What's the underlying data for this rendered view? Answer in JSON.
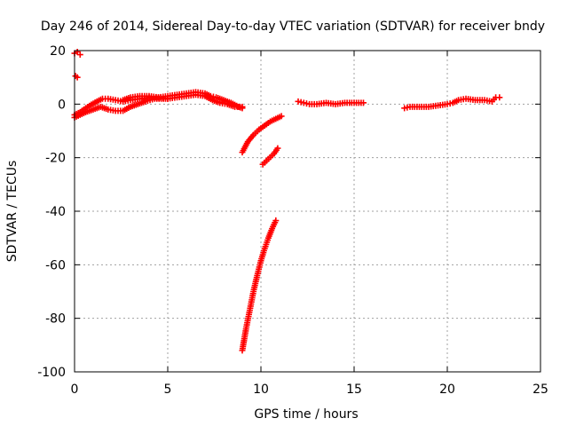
{
  "chart_data": {
    "type": "scatter",
    "title": "Day 246 of 2014, Sidereal Day-to-day VTEC variation (SDTVAR) for receiver bndy",
    "xlabel": "GPS time / hours",
    "ylabel": "SDTVAR / TECUs",
    "xlim": [
      0,
      25
    ],
    "ylim": [
      -100,
      20
    ],
    "xticks": [
      "0",
      "5",
      "10",
      "15",
      "20",
      "25"
    ],
    "yticks": [
      "20",
      "0",
      "-20",
      "-40",
      "-60",
      "-80",
      "-100"
    ],
    "xtick_values": [
      0,
      5,
      10,
      15,
      20,
      25
    ],
    "ytick_values": [
      20,
      0,
      -20,
      -40,
      -60,
      -80,
      -100
    ],
    "grid": true,
    "marker_color": "#ff0000",
    "marker": "plus",
    "series": [
      {
        "segments": [
          [
            [
              0.0,
              19.0
            ],
            [
              0.15,
              19.5
            ],
            [
              0.3,
              18.5
            ]
          ],
          [
            [
              0.05,
              10.5
            ],
            [
              0.15,
              10.0
            ]
          ],
          [
            [
              0.0,
              -4.0
            ],
            [
              0.3,
              -3.0
            ],
            [
              0.6,
              -1.5
            ],
            [
              0.9,
              -0.2
            ],
            [
              1.2,
              1.0
            ],
            [
              1.5,
              2.0
            ],
            [
              1.8,
              2.0
            ],
            [
              2.2,
              1.5
            ],
            [
              2.6,
              1.0
            ],
            [
              3.0,
              1.5
            ],
            [
              3.5,
              2.0
            ],
            [
              4.0,
              2.5
            ],
            [
              4.5,
              2.5
            ],
            [
              5.0,
              3.0
            ],
            [
              5.5,
              3.5
            ],
            [
              6.0,
              4.0
            ],
            [
              6.5,
              4.5
            ],
            [
              7.0,
              4.0
            ],
            [
              7.3,
              3.0
            ],
            [
              7.6,
              2.5
            ],
            [
              8.0,
              1.5
            ],
            [
              8.4,
              0.5
            ],
            [
              8.8,
              -1.0
            ],
            [
              9.0,
              -1.5
            ]
          ],
          [
            [
              0.0,
              -5.0
            ],
            [
              0.3,
              -4.0
            ],
            [
              0.6,
              -3.0
            ],
            [
              1.0,
              -2.0
            ],
            [
              1.4,
              -1.0
            ],
            [
              1.8,
              -2.0
            ],
            [
              2.2,
              -2.5
            ],
            [
              2.6,
              -2.5
            ],
            [
              3.0,
              -1.0
            ],
            [
              3.4,
              0.0
            ],
            [
              3.8,
              1.0
            ],
            [
              4.3,
              2.0
            ],
            [
              5.0,
              2.0
            ],
            [
              5.5,
              2.5
            ],
            [
              6.0,
              3.0
            ],
            [
              6.5,
              3.5
            ],
            [
              7.0,
              3.0
            ],
            [
              7.4,
              1.5
            ],
            [
              7.8,
              0.5
            ],
            [
              8.2,
              0.0
            ],
            [
              8.6,
              -1.0
            ],
            [
              9.0,
              -1.0
            ]
          ],
          [
            [
              2.6,
              1.5
            ],
            [
              3.0,
              2.5
            ],
            [
              3.5,
              3.0
            ],
            [
              4.0,
              3.0
            ],
            [
              4.5,
              2.5
            ],
            [
              5.0,
              2.0
            ]
          ],
          [
            [
              9.0,
              -18.0
            ],
            [
              9.3,
              -14.0
            ],
            [
              9.6,
              -11.5
            ],
            [
              9.9,
              -9.5
            ],
            [
              10.2,
              -8.0
            ],
            [
              10.5,
              -6.5
            ],
            [
              10.8,
              -5.5
            ],
            [
              11.1,
              -4.5
            ]
          ],
          [
            [
              10.1,
              -22.5
            ],
            [
              10.4,
              -20.5
            ],
            [
              10.7,
              -18.5
            ],
            [
              10.9,
              -16.5
            ]
          ],
          [
            [
              9.0,
              -92.0
            ],
            [
              9.2,
              -84.0
            ],
            [
              9.4,
              -77.0
            ],
            [
              9.6,
              -70.0
            ],
            [
              9.8,
              -64.0
            ],
            [
              10.0,
              -58.5
            ],
            [
              10.2,
              -54.0
            ],
            [
              10.4,
              -50.0
            ],
            [
              10.6,
              -46.5
            ],
            [
              10.8,
              -43.5
            ]
          ],
          [
            [
              12.0,
              1.0
            ],
            [
              12.3,
              0.5
            ],
            [
              12.6,
              0.0
            ],
            [
              13.0,
              0.0
            ],
            [
              13.5,
              0.5
            ],
            [
              14.0,
              0.0
            ],
            [
              14.5,
              0.5
            ],
            [
              15.0,
              0.5
            ],
            [
              15.5,
              0.5
            ]
          ],
          [
            [
              17.7,
              -1.5
            ],
            [
              18.0,
              -1.0
            ],
            [
              18.5,
              -1.0
            ],
            [
              19.0,
              -1.0
            ],
            [
              19.5,
              -0.5
            ],
            [
              20.0,
              0.0
            ],
            [
              20.3,
              0.5
            ],
            [
              20.6,
              1.5
            ],
            [
              21.0,
              2.0
            ],
            [
              21.5,
              1.5
            ],
            [
              22.0,
              1.5
            ],
            [
              22.4,
              1.0
            ],
            [
              22.6,
              2.5
            ],
            [
              22.8,
              2.5
            ]
          ]
        ]
      }
    ]
  }
}
